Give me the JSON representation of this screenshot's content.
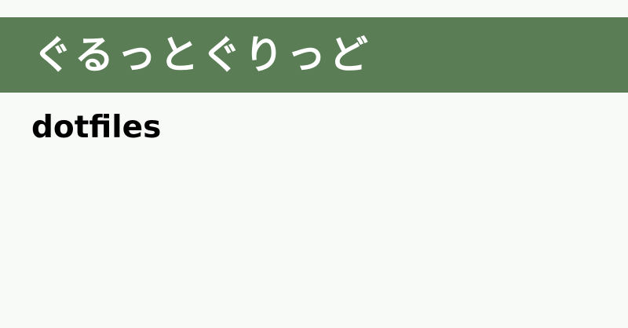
{
  "site": {
    "name": "ぐるっとぐりっど",
    "brand_color": "#5a7d56",
    "background_color": "#f8faf8"
  },
  "page": {
    "title": "dotfiles"
  }
}
